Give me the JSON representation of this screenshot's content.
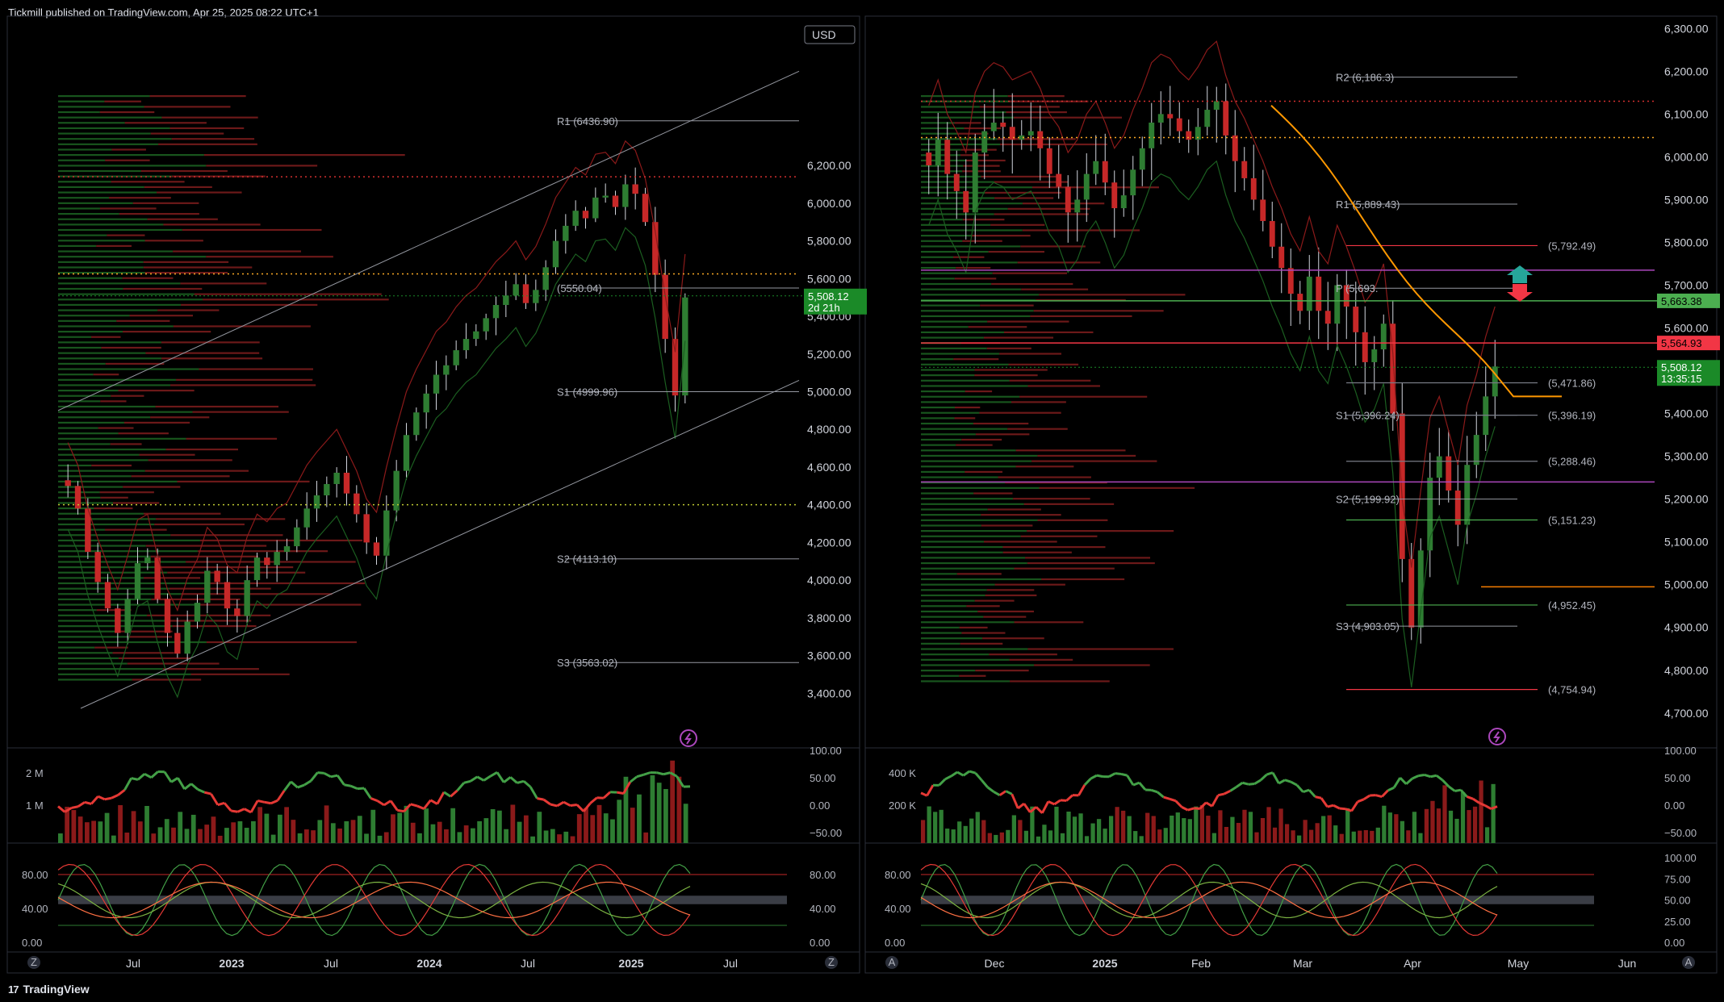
{
  "header": {
    "publisher": "Tickmill published on TradingView.com, Apr 25, 2025 08:22 UTC+1"
  },
  "footer": {
    "brand": "TradingView",
    "logo": "tradingview-logo"
  },
  "colors": {
    "up": "#2e7d32",
    "down": "#c62828",
    "bg": "#000000",
    "pos": "#4caf50",
    "neg": "#f23645"
  },
  "chart_data": [
    {
      "type": "candlestick",
      "panel": "left",
      "currency": "USD",
      "price_axis": [
        6200,
        6000,
        5800,
        5600,
        5400,
        5200,
        5000,
        4800,
        4600,
        4400,
        4200,
        4000,
        3800,
        3600,
        3400
      ],
      "price_axis_labels": [
        "6,200.00",
        "6,000.00",
        "5,800.00",
        "5,600.00",
        "5,400.00",
        "5,200.00",
        "5,000.00",
        "4,800.00",
        "4,600.00",
        "4,400.00",
        "4,200.00",
        "4,000.00",
        "3,800.00",
        "3,600.00",
        "3,400.00"
      ],
      "ylim": [
        3320,
        6650
      ],
      "time_labels": [
        "Jul",
        "2023",
        "Jul",
        "2024",
        "Jul",
        "2025",
        "Jul"
      ],
      "last_price": {
        "value": "5,508.12",
        "sub": "2d 21h"
      },
      "pivots": [
        {
          "label": "R1 (6436.90)",
          "value": 6436.9
        },
        {
          "label": "(5550.04)",
          "value": 5550.04
        },
        {
          "label": "S1 (4999.96)",
          "value": 4999.96
        },
        {
          "label": "S2 (4113.10)",
          "value": 4113.1
        },
        {
          "label": "S3 (3563.02)",
          "value": 3563.02
        }
      ],
      "close_series": [
        4500,
        4380,
        4150,
        3990,
        3850,
        3720,
        3900,
        4090,
        4120,
        3900,
        3720,
        3610,
        3780,
        3880,
        4050,
        3990,
        3850,
        3810,
        4000,
        4120,
        4080,
        4150,
        4180,
        4280,
        4380,
        4450,
        4510,
        4570,
        4460,
        4350,
        4200,
        4130,
        4370,
        4580,
        4770,
        4890,
        4990,
        5090,
        5140,
        5220,
        5280,
        5320,
        5390,
        5460,
        5510,
        5570,
        5470,
        5540,
        5660,
        5800,
        5880,
        5960,
        5920,
        6030,
        6040,
        5980,
        6100,
        6050,
        5900,
        5620,
        5280,
        4980,
        5500
      ]
    },
    {
      "type": "candlestick",
      "panel": "right",
      "price_axis": [
        6300,
        6200,
        6100,
        6000,
        5900,
        5800,
        5700,
        5600,
        5500,
        5400,
        5300,
        5200,
        5100,
        5000,
        4900,
        4800,
        4700
      ],
      "price_axis_labels": [
        "6,300.00",
        "6,200.00",
        "6,100.00",
        "6,000.00",
        "5,900.00",
        "5,800.00",
        "5,700.00",
        "5,600.00",
        "5,500.00",
        "5,400.00",
        "5,300.00",
        "5,200.00",
        "5,100.00",
        "5,000.00",
        "4,900.00",
        "4,800.00",
        "4,700.00"
      ],
      "ylim": [
        4660,
        6310
      ],
      "time_labels": [
        "Dec",
        "2025",
        "Feb",
        "Mar",
        "Apr",
        "May",
        "Jun"
      ],
      "price_tags": [
        {
          "value": "5,663.38",
          "color": "#4caf50"
        },
        {
          "value": "5,564.93",
          "color": "#f23645"
        }
      ],
      "last_price": {
        "value": "5,508.12",
        "sub": "13:35:15"
      },
      "pivots": [
        {
          "label": "R2 (6,186.3)",
          "value": 6186.3
        },
        {
          "label": "R1 (5,889.43)",
          "value": 5889.43
        },
        {
          "label": "P (5,693.",
          "value": 5693
        },
        {
          "label": "S1 (5,396.24)",
          "value": 5396.24
        },
        {
          "label": "S2 (5,199.92)",
          "value": 5199.92
        },
        {
          "label": "S3 (4,903.05)",
          "value": 4903.05
        }
      ],
      "levels": [
        {
          "label": "(5,792.49)",
          "value": 5792.49,
          "color": "#f23645"
        },
        {
          "label": "(5,471.86)",
          "value": 5471.86,
          "color": "#787b86"
        },
        {
          "label": "(5,396.19)",
          "value": 5396.19,
          "color": "#787b86"
        },
        {
          "label": "(5,288.46)",
          "value": 5288.46,
          "color": "#787b86"
        },
        {
          "label": "(5,151.23)",
          "value": 5151.23,
          "color": "#4caf50"
        },
        {
          "label": "(4,952.45)",
          "value": 4952.45,
          "color": "#4caf50"
        },
        {
          "label": "(4,754.94)",
          "value": 4754.94,
          "color": "#f23645"
        }
      ],
      "close_series": [
        5980,
        6040,
        5960,
        5920,
        5870,
        6010,
        6060,
        6080,
        6070,
        6040,
        6050,
        6060,
        6020,
        5960,
        5930,
        5870,
        5900,
        5960,
        5990,
        5940,
        5880,
        5910,
        5970,
        6020,
        6080,
        6100,
        6090,
        6060,
        6040,
        6070,
        6110,
        6130,
        6050,
        5990,
        5950,
        5900,
        5850,
        5790,
        5740,
        5680,
        5640,
        5720,
        5640,
        5610,
        5700,
        5650,
        5590,
        5520,
        5550,
        5610,
        5400,
        5060,
        4900,
        5080,
        5250,
        5300,
        5220,
        5140,
        5280,
        5350,
        5440,
        5510
      ]
    }
  ],
  "left_volume": {
    "axis_labels": [
      "2 M",
      "1 M"
    ],
    "osc_labels": [
      "100.00",
      "50.00",
      "0.00",
      "−50.00"
    ]
  },
  "right_volume": {
    "axis_labels": [
      "400 K",
      "200 K"
    ],
    "osc_labels": [
      "100.00",
      "50.00",
      "0.00",
      "−50.00"
    ]
  },
  "left_stoch": {
    "left_labels": [
      "80.00",
      "40.00",
      "0.00"
    ],
    "right_labels": [
      "80.00",
      "40.00",
      "0.00"
    ]
  },
  "right_stoch": {
    "left_labels": [
      "80.00",
      "40.00",
      "0.00"
    ],
    "right_labels": [
      "100.00",
      "75.00",
      "50.00",
      "25.00",
      "0.00"
    ]
  },
  "controls": {
    "zoom_z": "Z",
    "auto_a": "A"
  }
}
